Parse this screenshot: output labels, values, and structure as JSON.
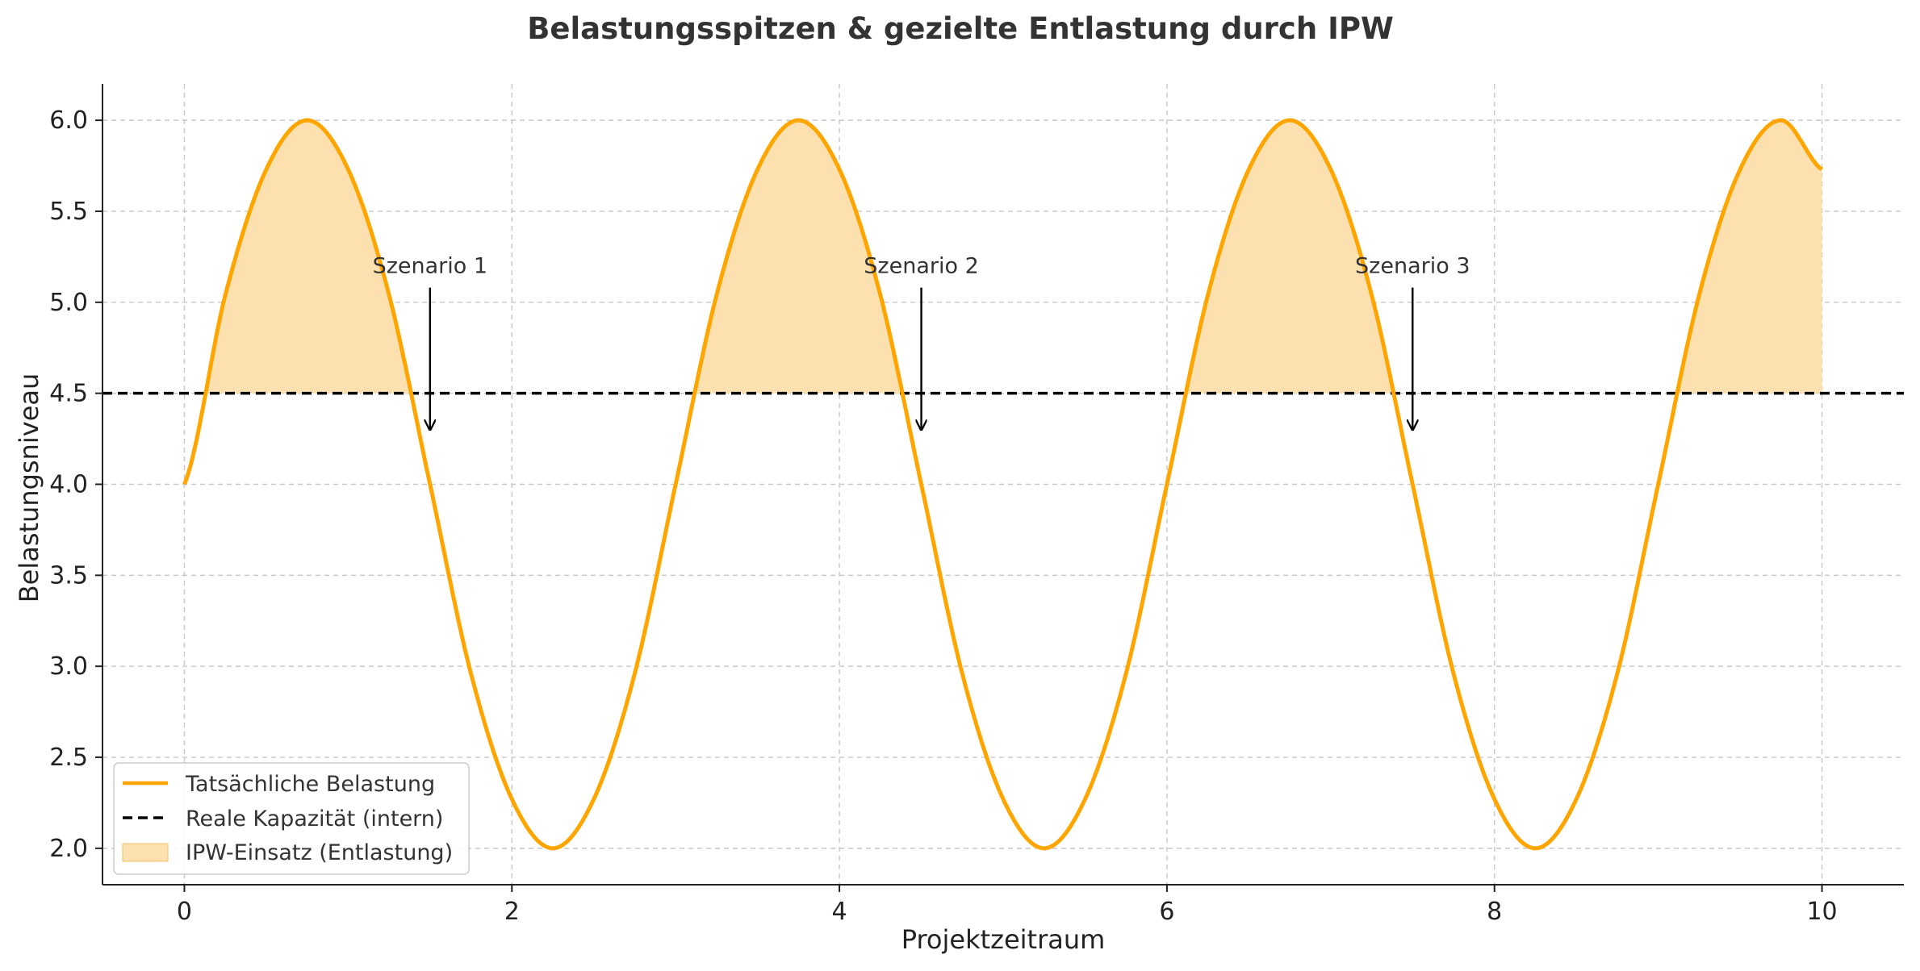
{
  "chart_data": {
    "type": "line",
    "title": "Belastungsspitzen & gezielte Entlastung durch IPW",
    "xlabel": "Projektzeitraum",
    "ylabel": "Belastungsniveau",
    "xlim": [
      -0.5,
      10.5
    ],
    "ylim": [
      1.8,
      6.2
    ],
    "xticks": [
      0,
      2,
      4,
      6,
      8,
      10
    ],
    "xtick_labels": [
      "0",
      "2",
      "4",
      "6",
      "8",
      "10"
    ],
    "yticks": [
      2.0,
      2.5,
      3.0,
      3.5,
      4.0,
      4.5,
      5.0,
      5.5,
      6.0
    ],
    "ytick_labels": [
      "2.0",
      "2.5",
      "3.0",
      "3.5",
      "4.0",
      "4.5",
      "5.0",
      "5.5",
      "6.0"
    ],
    "grid": true,
    "legend_position": "lower-left",
    "colors": {
      "load": "#FFA500",
      "capacity": "#000000",
      "relief_fill": "#FDE0B0",
      "grid": "#c8c8c8"
    },
    "series": [
      {
        "name": "Tatsächliche Belastung",
        "style": "solid",
        "x": [
          0,
          0.25,
          0.5,
          0.75,
          1.0,
          1.25,
          1.5,
          1.75,
          2.0,
          2.25,
          2.5,
          2.75,
          3.0,
          3.25,
          3.5,
          3.75,
          4.0,
          4.25,
          4.5,
          4.75,
          5.0,
          5.25,
          5.5,
          5.75,
          6.0,
          6.25,
          6.5,
          6.75,
          7.0,
          7.25,
          7.5,
          7.75,
          8.0,
          8.25,
          8.5,
          8.75,
          9.0,
          9.25,
          9.5,
          9.75,
          10.0
        ],
        "y": [
          4.0,
          5.04,
          5.73,
          6.0,
          5.73,
          5.04,
          4.0,
          2.96,
          2.27,
          2.0,
          2.27,
          2.96,
          4.0,
          5.04,
          5.73,
          6.0,
          5.73,
          5.04,
          4.0,
          2.96,
          2.27,
          2.0,
          2.27,
          2.96,
          4.0,
          5.04,
          5.73,
          6.0,
          5.73,
          5.04,
          4.0,
          2.96,
          2.27,
          2.0,
          2.27,
          2.96,
          4.0,
          5.04,
          5.73,
          6.0,
          5.73
        ]
      },
      {
        "name": "Reale Kapazität (intern)",
        "style": "dashed",
        "x": [
          -0.5,
          10.5
        ],
        "y": [
          4.5,
          4.5
        ]
      }
    ],
    "fill": {
      "name": "IPW-Einsatz (Entlastung)",
      "where": "Tatsächliche Belastung above 4.5"
    },
    "annotations": [
      {
        "label": "Szenario 1",
        "x": 1.5,
        "text_y": 5.2,
        "arrow_to_y": 4.3
      },
      {
        "label": "Szenario 2",
        "x": 4.5,
        "text_y": 5.2,
        "arrow_to_y": 4.3
      },
      {
        "label": "Szenario 3",
        "x": 7.5,
        "text_y": 5.2,
        "arrow_to_y": 4.3
      }
    ]
  }
}
